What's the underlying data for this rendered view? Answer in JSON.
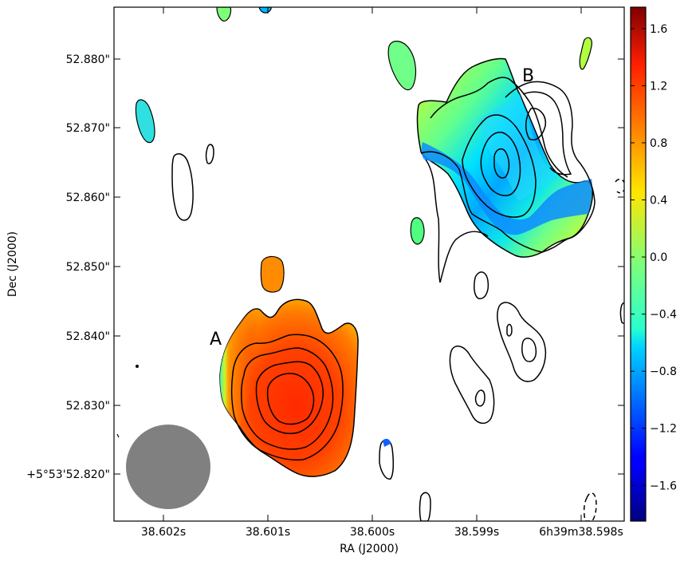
{
  "chart_data": {
    "type": "heatmap",
    "title": "",
    "xlabel": "RA (J2000)",
    "ylabel": "Dec (J2000)",
    "x_tick_labels": [
      "38.602s",
      "38.601s",
      "38.600s",
      "38.599s",
      "6h39m38.598s"
    ],
    "y_tick_labels": [
      "52.880\"",
      "52.870\"",
      "52.860\"",
      "52.850\"",
      "52.840\"",
      "52.830\"",
      "+5°53'52.820\""
    ],
    "colorbar": {
      "colormap": "jet",
      "range": [
        -1.85,
        1.75
      ],
      "tick_labels": [
        "1.6",
        "1.2",
        "0.8",
        "0.4",
        "0.0",
        "−0.4",
        "−0.8",
        "−1.2",
        "−1.6"
      ]
    },
    "source_labels": [
      "A",
      "B"
    ],
    "beam_color": "#808080",
    "contours": {
      "positive_style": "solid",
      "negative_style": "dashed",
      "color": "#000000"
    }
  }
}
